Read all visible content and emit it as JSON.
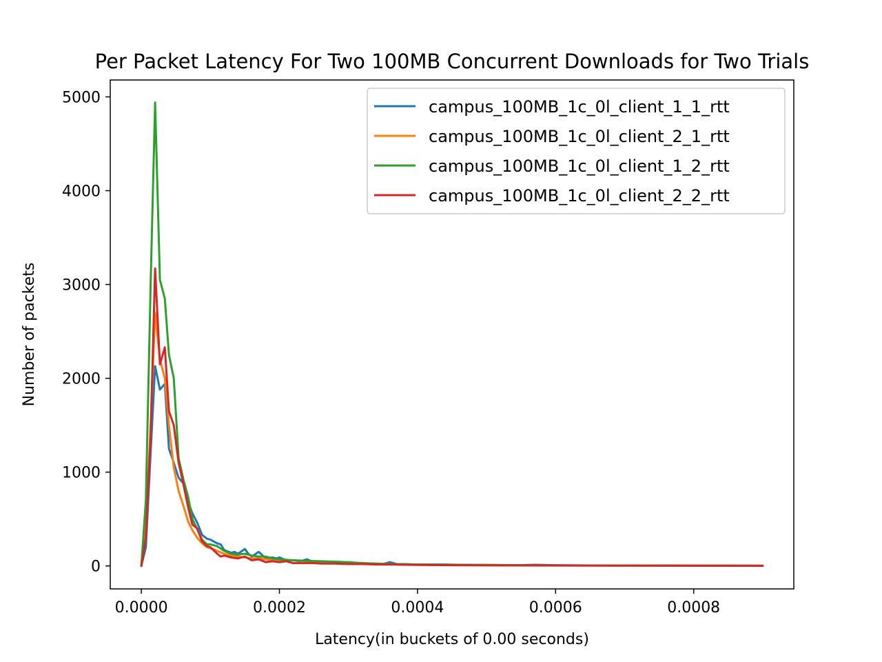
{
  "chart_data": {
    "type": "line",
    "title": "Per Packet Latency For Two 100MB Concurrent Downloads for Two Trials",
    "xlabel": "Latency(in buckets of 0.00 seconds)",
    "ylabel": "Number of packets",
    "xlim": [
      -4.5e-05,
      0.000945
    ],
    "ylim": [
      -245,
      5180
    ],
    "xticks": [
      0.0,
      0.0002,
      0.0004,
      0.0006,
      0.0008
    ],
    "xtick_labels": [
      "0.0000",
      "0.0002",
      "0.0004",
      "0.0006",
      "0.0008"
    ],
    "yticks": [
      0,
      1000,
      2000,
      3000,
      4000,
      5000
    ],
    "ytick_labels": [
      "0",
      "1000",
      "2000",
      "3000",
      "4000",
      "5000"
    ],
    "grid": false,
    "legend_position": "top-right",
    "series": [
      {
        "name": "campus_100MB_1c_0l_client_1_1_rtt",
        "color": "#1f77b4",
        "x": [
          0.0,
          6.6e-06,
          1.35e-05,
          2e-05,
          2.7e-05,
          3.4e-05,
          4e-05,
          4.7e-05,
          5.4e-05,
          6.1e-05,
          6.8e-05,
          7.4e-05,
          8.1e-05,
          8.8e-05,
          9.5e-05,
          0.0001,
          0.00011,
          0.000115,
          0.00012,
          0.00013,
          0.000135,
          0.00014,
          0.00015,
          0.000155,
          0.00016,
          0.00017,
          0.000176,
          0.00018,
          0.00019,
          0.000196,
          0.0002,
          0.00021,
          0.00022,
          0.00023,
          0.00024,
          0.00025,
          0.00026,
          0.00027,
          0.00028,
          0.00029,
          0.0003,
          0.00031,
          0.00032,
          0.00033,
          0.00034,
          0.00035,
          0.00036,
          0.00037,
          0.00038,
          0.0004,
          0.00042,
          0.00044,
          0.00046,
          0.00048,
          0.0005,
          0.00055,
          0.00057,
          0.0006,
          0.00065,
          0.0007,
          0.00075,
          0.0008,
          0.00085,
          0.0009
        ],
        "values": [
          0,
          200,
          1200,
          2130,
          1880,
          1940,
          1250,
          1100,
          940,
          880,
          680,
          560,
          460,
          330,
          290,
          280,
          240,
          230,
          170,
          140,
          150,
          130,
          180,
          130,
          100,
          150,
          110,
          80,
          90,
          80,
          90,
          60,
          60,
          50,
          70,
          40,
          50,
          40,
          40,
          30,
          30,
          30,
          30,
          20,
          20,
          20,
          40,
          20,
          20,
          15,
          15,
          15,
          12,
          10,
          10,
          8,
          12,
          8,
          5,
          5,
          5,
          3,
          3,
          2
        ]
      },
      {
        "name": "campus_100MB_1c_0l_client_2_1_rtt",
        "color": "#ff7f0e",
        "x": [
          0.0,
          6.6e-06,
          1.35e-05,
          2e-05,
          2.7e-05,
          3.4e-05,
          4e-05,
          4.7e-05,
          5.4e-05,
          6.1e-05,
          6.8e-05,
          7.4e-05,
          8.1e-05,
          8.8e-05,
          9.5e-05,
          0.0001,
          0.00011,
          0.00012,
          0.00013,
          0.00014,
          0.00015,
          0.00016,
          0.00017,
          0.00018,
          0.00019,
          0.0002,
          0.00022,
          0.00024,
          0.00026,
          0.00028,
          0.0003,
          0.00032,
          0.00034,
          0.00036,
          0.00038,
          0.0004,
          0.00045,
          0.0005,
          0.00055,
          0.0006,
          0.0007,
          0.0008,
          0.0009
        ],
        "values": [
          0,
          400,
          1500,
          2700,
          2200,
          2000,
          1500,
          1050,
          800,
          640,
          470,
          380,
          300,
          240,
          200,
          190,
          160,
          130,
          110,
          100,
          90,
          80,
          80,
          70,
          60,
          60,
          60,
          50,
          45,
          40,
          35,
          30,
          25,
          20,
          15,
          12,
          10,
          8,
          6,
          5,
          4,
          3,
          2
        ]
      },
      {
        "name": "campus_100MB_1c_0l_client_1_2_rtt",
        "color": "#2ca02c",
        "x": [
          0.0,
          6.6e-06,
          1.35e-05,
          2e-05,
          2.7e-05,
          3.4e-05,
          4e-05,
          4.7e-05,
          5.4e-05,
          6.1e-05,
          6.8e-05,
          7.4e-05,
          8.1e-05,
          8.8e-05,
          9.5e-05,
          0.0001,
          0.00011,
          0.00012,
          0.00013,
          0.00014,
          0.00015,
          0.00016,
          0.00017,
          0.00018,
          0.00019,
          0.0002,
          0.00022,
          0.00024,
          0.00026,
          0.00028,
          0.0003,
          0.00032,
          0.00034,
          0.00036,
          0.00038,
          0.0004,
          0.00045,
          0.0005,
          0.00055,
          0.0006,
          0.0007,
          0.0008,
          0.0009
        ],
        "values": [
          0,
          700,
          3000,
          4940,
          3050,
          2850,
          2250,
          2000,
          1150,
          920,
          730,
          500,
          390,
          280,
          230,
          230,
          210,
          160,
          130,
          120,
          130,
          110,
          100,
          100,
          80,
          70,
          60,
          55,
          50,
          45,
          40,
          30,
          25,
          20,
          18,
          15,
          12,
          10,
          8,
          6,
          4,
          3,
          2
        ]
      },
      {
        "name": "campus_100MB_1c_0l_client_2_2_rtt",
        "color": "#d62728",
        "x": [
          0.0,
          6.6e-06,
          1.35e-05,
          2e-05,
          2.7e-05,
          3.4e-05,
          4e-05,
          4.7e-05,
          5.4e-05,
          6.1e-05,
          6.8e-05,
          7.4e-05,
          8.1e-05,
          8.8e-05,
          9.5e-05,
          0.0001,
          0.00011,
          0.000115,
          0.00012,
          0.00013,
          0.00014,
          0.00015,
          0.00016,
          0.00017,
          0.00018,
          0.00019,
          0.0002,
          0.00021,
          0.00022,
          0.00023,
          0.00024,
          0.00025,
          0.00026,
          0.00028,
          0.0003,
          0.00032,
          0.00034,
          0.00036,
          0.00038,
          0.0004,
          0.00045,
          0.0005,
          0.00055,
          0.0006,
          0.0007,
          0.0008,
          0.0009
        ],
        "values": [
          0,
          300,
          1400,
          3170,
          2150,
          2330,
          1650,
          1500,
          1100,
          870,
          620,
          440,
          400,
          260,
          210,
          200,
          130,
          100,
          110,
          90,
          80,
          100,
          60,
          70,
          40,
          50,
          40,
          50,
          30,
          30,
          30,
          30,
          25,
          25,
          20,
          20,
          15,
          15,
          12,
          10,
          8,
          6,
          5,
          4,
          3,
          2,
          1
        ]
      }
    ]
  }
}
